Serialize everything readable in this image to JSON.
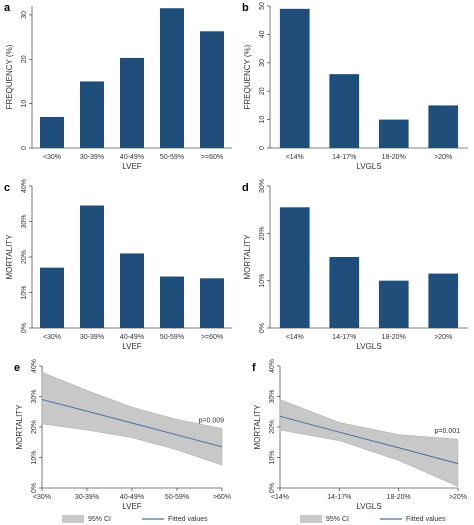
{
  "chart_data": [
    {
      "type": "bar",
      "label": "a",
      "ylabel": "FREQUENCY (%)",
      "xlabel": "LVEF",
      "color": "#1f4e7a",
      "categories": [
        "<30%",
        "30-39%",
        "40-49%",
        "50-59%",
        ">=60%"
      ],
      "values": [
        7,
        15,
        20.3,
        31.5,
        26.3
      ],
      "ylim": [
        0,
        32
      ],
      "yticks": [
        0,
        10,
        20,
        30
      ]
    },
    {
      "type": "bar",
      "label": "b",
      "ylabel": "FREQUENCY (%)",
      "xlabel": "LVGLS",
      "color": "#1f4e7a",
      "categories": [
        "<14%",
        "14-17%",
        "18-20%",
        ">20%"
      ],
      "values": [
        49,
        26,
        10,
        15
      ],
      "ylim": [
        0,
        50
      ],
      "yticks": [
        0,
        10,
        20,
        30,
        40,
        50
      ]
    },
    {
      "type": "bar",
      "label": "c",
      "ylabel": "MORTALITY",
      "xlabel": "LVEF",
      "color": "#1f4e7a",
      "categories": [
        "<30%",
        "30-39%",
        "40-49%",
        "50-59%",
        ">=60%"
      ],
      "values": [
        17,
        34.5,
        21,
        14.5,
        14
      ],
      "ylim": [
        0,
        40
      ],
      "yticks": [
        {
          "value": 0,
          "label": "0%"
        },
        {
          "value": 10,
          "label": "10%"
        },
        {
          "value": 20,
          "label": "20%"
        },
        {
          "value": 30,
          "label": "30%"
        },
        {
          "value": 40,
          "label": "40%"
        }
      ]
    },
    {
      "type": "bar",
      "label": "d",
      "ylabel": "MORTALITY",
      "xlabel": "LVGLS",
      "color": "#1f4e7a",
      "categories": [
        "<14%",
        "14-17%",
        "18-20%",
        ">20%"
      ],
      "values": [
        25.5,
        15,
        10,
        11.5
      ],
      "ylim": [
        0,
        30
      ],
      "yticks": [
        {
          "value": 0,
          "label": "0%"
        },
        {
          "value": 10,
          "label": "10%"
        },
        {
          "value": 20,
          "label": "20%"
        },
        {
          "value": 30,
          "label": "30%"
        }
      ]
    },
    {
      "type": "line",
      "label": "e",
      "ylabel": "MORTALITY",
      "xlabel": "LVEF",
      "annotation": "p=0.009",
      "categories": [
        "<30%",
        "30-39%",
        "40-49%",
        "50-59%",
        ">60%"
      ],
      "series": [
        {
          "name": "95% CI",
          "type": "band",
          "color": "#c8c8c8",
          "lower": [
            21,
            19,
            16.5,
            12.5,
            7.5
          ],
          "upper": [
            38,
            32,
            26.5,
            22.5,
            19.5
          ]
        },
        {
          "name": "Fitted values",
          "color": "#4a6f99",
          "values": [
            29,
            25.2,
            21.3,
            17.4,
            13.5
          ]
        }
      ],
      "ylim": [
        0,
        40
      ],
      "yticks": [
        {
          "value": 0,
          "label": "0%"
        },
        {
          "value": 10,
          "label": "10%"
        },
        {
          "value": 20,
          "label": "20%"
        },
        {
          "value": 30,
          "label": "30%"
        },
        {
          "value": 40,
          "label": "40%"
        }
      ]
    },
    {
      "type": "line",
      "label": "f",
      "ylabel": "MORTALITY",
      "xlabel": "LVGLS",
      "annotation": "p=0.001",
      "categories": [
        "<14%",
        "14-17%",
        "18-20%",
        ">20%"
      ],
      "series": [
        {
          "name": "95% CI",
          "type": "band",
          "color": "#c8c8c8",
          "lower": [
            19,
            15.5,
            9,
            0.5
          ],
          "upper": [
            29,
            21.5,
            17.5,
            16
          ]
        },
        {
          "name": "Fitted values",
          "color": "#4a6f99",
          "values": [
            23.5,
            18.3,
            13.2,
            8
          ]
        }
      ],
      "ylim": [
        0,
        40
      ],
      "yticks": [
        {
          "value": 0,
          "label": "0%"
        },
        {
          "value": 10,
          "label": "10%"
        },
        {
          "value": 20,
          "label": "20%"
        },
        {
          "value": 30,
          "label": "30%"
        },
        {
          "value": 40,
          "label": "40%"
        }
      ]
    }
  ]
}
